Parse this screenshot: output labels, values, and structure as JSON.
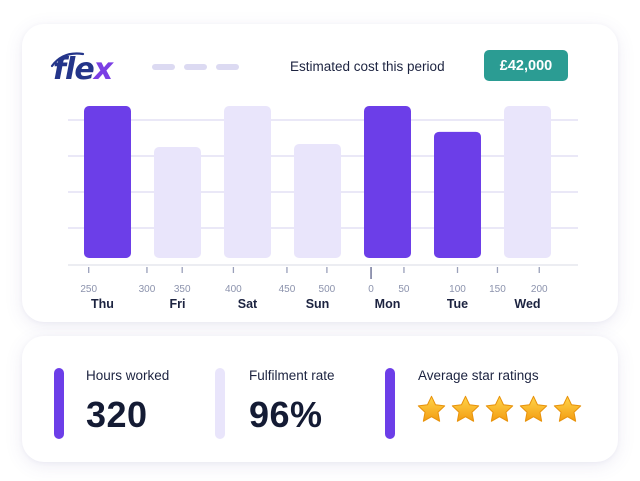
{
  "brand": {
    "logo_main": "fle",
    "logo_accent": "x"
  },
  "header": {
    "cost_label": "Estimated cost this period",
    "cost_value": "£42,000"
  },
  "colors": {
    "primary": "#6c3ee8",
    "light": "#e9e5fb",
    "badge": "#2b9c93",
    "star": "#f7b51c"
  },
  "chart_data": {
    "type": "bar",
    "categories": [
      "Thu",
      "Fri",
      "Sat",
      "Sun",
      "Mon",
      "Tue",
      "Wed"
    ],
    "values": [
      100,
      73,
      100,
      75,
      100,
      83,
      100
    ],
    "highlighted": [
      true,
      false,
      false,
      false,
      true,
      true,
      false
    ],
    "gridlines": 4,
    "ticks": [
      {
        "label": "250",
        "day": 0,
        "offset": 0.1
      },
      {
        "label": "300",
        "day": 1,
        "offset": -0.15
      },
      {
        "label": "350",
        "day": 1,
        "offset": 0.6
      },
      {
        "label": "400",
        "day": 2,
        "offset": 0.2
      },
      {
        "label": "450",
        "day": 3,
        "offset": -0.15
      },
      {
        "label": "500",
        "day": 3,
        "offset": 0.7
      },
      {
        "label": "0",
        "day": 4,
        "offset": 0.15
      },
      {
        "label": "50",
        "day": 4,
        "offset": 0.85
      },
      {
        "label": "100",
        "day": 5,
        "offset": 0.5
      },
      {
        "label": "150",
        "day": 5,
        "offset": 1.35
      },
      {
        "label": "200",
        "day": 6,
        "offset": 0.75
      }
    ]
  },
  "stats": [
    {
      "label": "Hours worked",
      "value": "320"
    },
    {
      "label": "Fulfilment rate",
      "value": "96%"
    },
    {
      "label": "Average star ratings",
      "stars": 5
    }
  ]
}
